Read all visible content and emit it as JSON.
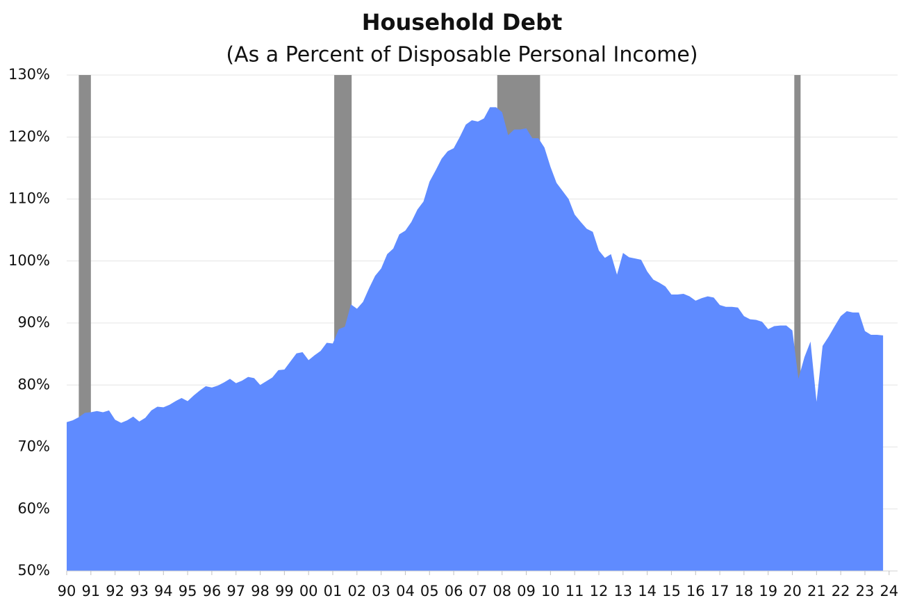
{
  "chart_data": {
    "type": "area",
    "title": "Household Debt",
    "subtitle": "(As a Percent of Disposable Personal Income)",
    "x": [
      1990,
      1990.25,
      1990.5,
      1990.75,
      1991,
      1991.25,
      1991.5,
      1991.75,
      1992,
      1992.25,
      1992.5,
      1992.75,
      1993,
      1993.25,
      1993.5,
      1993.75,
      1994,
      1994.25,
      1994.5,
      1994.75,
      1995,
      1995.25,
      1995.5,
      1995.75,
      1996,
      1996.25,
      1996.5,
      1996.75,
      1997,
      1997.25,
      1997.5,
      1997.75,
      1998,
      1998.25,
      1998.5,
      1998.75,
      1999,
      1999.25,
      1999.5,
      1999.75,
      2000,
      2000.25,
      2000.5,
      2000.75,
      2001,
      2001.25,
      2001.5,
      2001.75,
      2002,
      2002.25,
      2002.5,
      2002.75,
      2003,
      2003.25,
      2003.5,
      2003.75,
      2004,
      2004.25,
      2004.5,
      2004.75,
      2005,
      2005.25,
      2005.5,
      2005.75,
      2006,
      2006.25,
      2006.5,
      2006.75,
      2007,
      2007.25,
      2007.5,
      2007.75,
      2008,
      2008.25,
      2008.5,
      2008.75,
      2009,
      2009.25,
      2009.5,
      2009.75,
      2010,
      2010.25,
      2010.5,
      2010.75,
      2011,
      2011.25,
      2011.5,
      2011.75,
      2012,
      2012.25,
      2012.5,
      2012.75,
      2013,
      2013.25,
      2013.5,
      2013.75,
      2014,
      2014.25,
      2014.5,
      2014.75,
      2015,
      2015.25,
      2015.5,
      2015.75,
      2016,
      2016.25,
      2016.5,
      2016.75,
      2017,
      2017.25,
      2017.5,
      2017.75,
      2018,
      2018.25,
      2018.5,
      2018.75,
      2019,
      2019.25,
      2019.5,
      2019.75,
      2020,
      2020.25,
      2020.5,
      2020.75,
      2021,
      2021.25,
      2021.5,
      2021.75,
      2022,
      2022.25,
      2022.5,
      2022.75,
      2023,
      2023.25,
      2023.5,
      2023.75
    ],
    "series": [
      {
        "name": "Household Debt",
        "color": "#5f8bff",
        "values": [
          74.0,
          74.3,
          74.8,
          75.5,
          75.6,
          75.8,
          75.6,
          75.9,
          74.4,
          73.9,
          74.3,
          74.9,
          74.1,
          74.7,
          75.9,
          76.5,
          76.4,
          76.8,
          77.4,
          77.9,
          77.4,
          78.3,
          79.1,
          79.8,
          79.6,
          79.9,
          80.4,
          81.0,
          80.3,
          80.7,
          81.3,
          81.1,
          80.0,
          80.6,
          81.2,
          82.4,
          82.5,
          83.8,
          85.1,
          85.3,
          84.0,
          84.8,
          85.5,
          86.8,
          86.7,
          89.0,
          89.4,
          93.0,
          92.3,
          93.4,
          95.6,
          97.6,
          98.8,
          101.1,
          102.0,
          104.3,
          104.9,
          106.3,
          108.3,
          109.6,
          112.8,
          114.6,
          116.5,
          117.7,
          118.2,
          120.0,
          122.0,
          122.7,
          122.5,
          123.0,
          124.8,
          124.8,
          124.0,
          120.3,
          121.2,
          121.2,
          121.4,
          119.8,
          119.8,
          118.3,
          115.2,
          112.6,
          111.3,
          110.0,
          107.5,
          106.3,
          105.2,
          104.7,
          101.7,
          100.5,
          101.1,
          97.8,
          101.3,
          100.6,
          100.4,
          100.2,
          98.3,
          97.0,
          96.5,
          95.9,
          94.6,
          94.6,
          94.7,
          94.3,
          93.6,
          94.0,
          94.3,
          94.1,
          92.9,
          92.6,
          92.6,
          92.5,
          91.1,
          90.6,
          90.5,
          90.2,
          89.0,
          89.5,
          89.6,
          89.6,
          88.8,
          81.0,
          84.5,
          87.0,
          77.3,
          86.3,
          87.8,
          89.5,
          91.1,
          91.9,
          91.7,
          91.7,
          88.7,
          88.1,
          88.1,
          88.0
        ]
      }
    ],
    "recessions": [
      {
        "start": 1990.5,
        "end": 1991.0
      },
      {
        "start": 2001.06,
        "end": 2001.78
      },
      {
        "start": 2007.8,
        "end": 2009.57
      },
      {
        "start": 2020.08,
        "end": 2020.34
      }
    ],
    "recession_color": "#8c8c8c",
    "xlim": [
      1990,
      2024.35
    ],
    "xticks": [
      {
        "value": 1990,
        "label": "90"
      },
      {
        "value": 1991,
        "label": "91"
      },
      {
        "value": 1992,
        "label": "92"
      },
      {
        "value": 1993,
        "label": "93"
      },
      {
        "value": 1994,
        "label": "94"
      },
      {
        "value": 1995,
        "label": "95"
      },
      {
        "value": 1996,
        "label": "96"
      },
      {
        "value": 1997,
        "label": "97"
      },
      {
        "value": 1998,
        "label": "98"
      },
      {
        "value": 1999,
        "label": "99"
      },
      {
        "value": 2000,
        "label": "00"
      },
      {
        "value": 2001,
        "label": "01"
      },
      {
        "value": 2002,
        "label": "02"
      },
      {
        "value": 2003,
        "label": "03"
      },
      {
        "value": 2004,
        "label": "04"
      },
      {
        "value": 2005,
        "label": "05"
      },
      {
        "value": 2006,
        "label": "06"
      },
      {
        "value": 2007,
        "label": "07"
      },
      {
        "value": 2008,
        "label": "08"
      },
      {
        "value": 2009,
        "label": "09"
      },
      {
        "value": 2010,
        "label": "10"
      },
      {
        "value": 2011,
        "label": "11"
      },
      {
        "value": 2012,
        "label": "12"
      },
      {
        "value": 2013,
        "label": "13"
      },
      {
        "value": 2014,
        "label": "14"
      },
      {
        "value": 2015,
        "label": "15"
      },
      {
        "value": 2016,
        "label": "16"
      },
      {
        "value": 2017,
        "label": "17"
      },
      {
        "value": 2018,
        "label": "18"
      },
      {
        "value": 2019,
        "label": "19"
      },
      {
        "value": 2020,
        "label": "20"
      },
      {
        "value": 2021,
        "label": "21"
      },
      {
        "value": 2022,
        "label": "22"
      },
      {
        "value": 2023,
        "label": "23"
      },
      {
        "value": 2024,
        "label": "24"
      }
    ],
    "ylim": [
      50,
      130
    ],
    "yticks": [
      {
        "value": 50,
        "label": "50%"
      },
      {
        "value": 60,
        "label": "60%"
      },
      {
        "value": 70,
        "label": "70%"
      },
      {
        "value": 80,
        "label": "80%"
      },
      {
        "value": 90,
        "label": "90%"
      },
      {
        "value": 100,
        "label": "100%"
      },
      {
        "value": 110,
        "label": "110%"
      },
      {
        "value": 120,
        "label": "120%"
      },
      {
        "value": 130,
        "label": "130%"
      }
    ],
    "grid": true
  }
}
